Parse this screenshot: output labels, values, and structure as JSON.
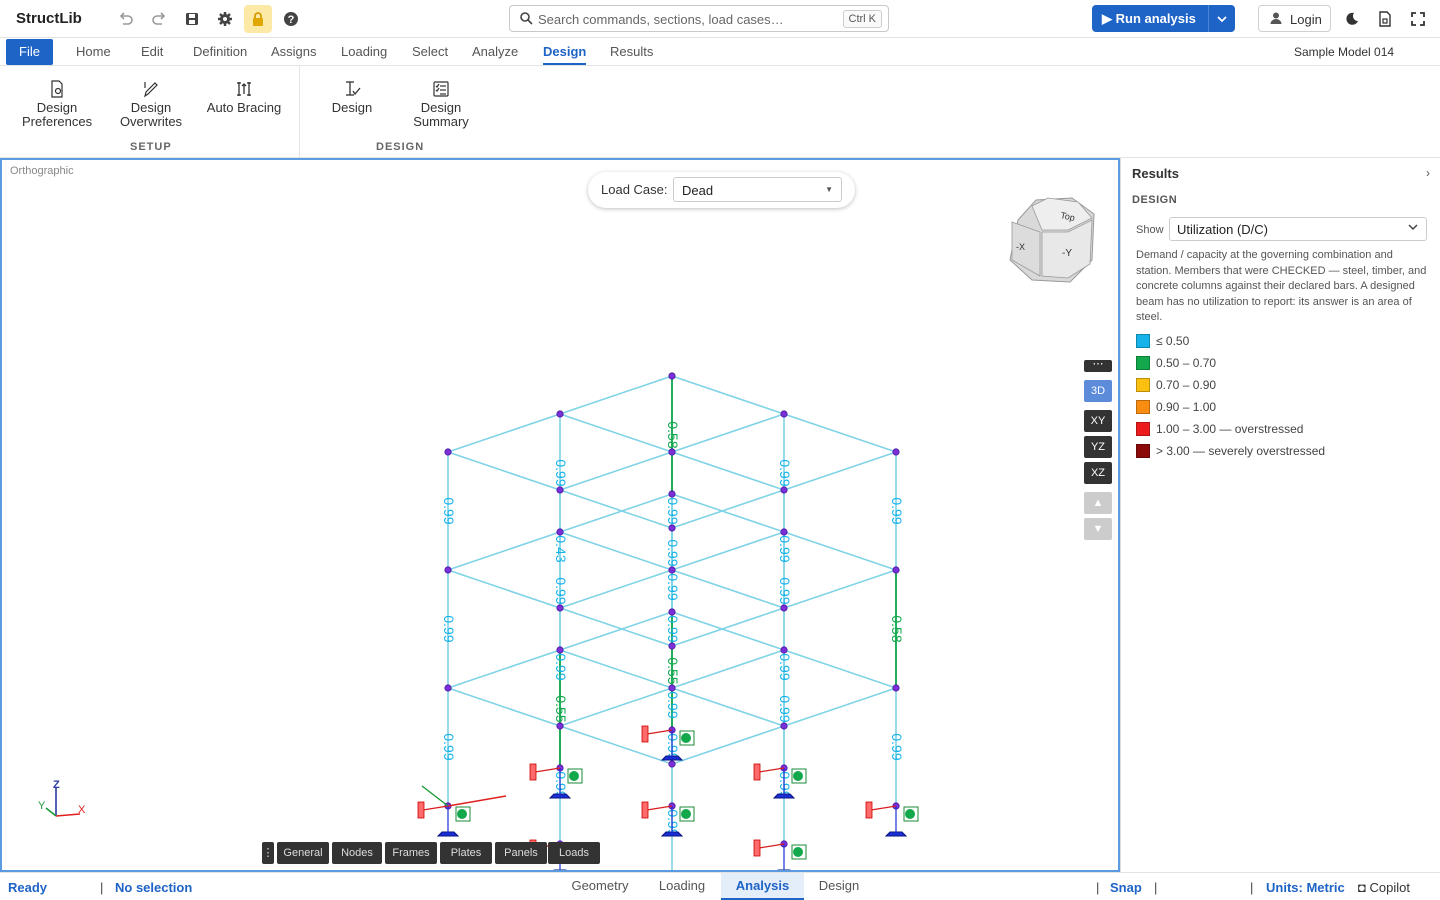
{
  "app": {
    "name": "StructLib",
    "model_name": "Sample Model 014"
  },
  "toolbar": {
    "icons": [
      "undo-icon",
      "redo-icon",
      "save-icon",
      "gear-icon",
      "lock-icon",
      "help-icon"
    ],
    "search_placeholder": "Search commands, sections, load cases…",
    "search_shortcut": "Ctrl K",
    "run_label": "Run analysis",
    "login_label": "Login"
  },
  "menu": {
    "file": "File",
    "items": [
      "Home",
      "Edit",
      "Definition",
      "Assigns",
      "Loading",
      "Select",
      "Analyze",
      "Design",
      "Results"
    ],
    "active": "Design"
  },
  "ribbon": {
    "setup_group": "SETUP",
    "design_group": "DESIGN",
    "design_preferences": [
      "Design",
      "Preferences"
    ],
    "design_overwrites": [
      "Design",
      "Overwrites"
    ],
    "auto_bracing": "Auto Bracing",
    "design": "Design",
    "design_summary": [
      "Design",
      "Summary"
    ]
  },
  "viewport": {
    "projection": "Orthographic",
    "load_case_label": "Load Case:",
    "load_case_value": "Dead",
    "view_buttons": [
      "3D",
      "XY",
      "YZ",
      "XZ"
    ],
    "active_view": "3D",
    "cube_faces": {
      "top": "Top",
      "front": "-Y",
      "left": "-X"
    },
    "axes": {
      "x": "X",
      "y": "Y",
      "z": "Z"
    },
    "bottom_tabs": [
      "General",
      "Nodes",
      "Frames",
      "Plates",
      "Panels",
      "Loads"
    ],
    "member_labels": [
      "0.58",
      "0.99",
      "0.55",
      "0.99",
      "0.99",
      "0.99",
      "0.99",
      "0.58",
      "0.99",
      "0.99",
      "0.99",
      "0.55",
      "0.99",
      "0.99",
      "0.99",
      "0.99",
      "0.99",
      "0.99",
      "0.99",
      "0.99",
      "0.99",
      "0.43",
      "0.99",
      "0.99",
      "0.99",
      "0.99",
      "0.99"
    ]
  },
  "results_panel": {
    "title": "Results",
    "section": "DESIGN",
    "show_label": "Show",
    "show_value": "Utilization (D/C)",
    "description": "Demand / capacity at the governing combination and station. Members that were CHECKED — steel, timber, and concrete columns against their declared bars. A designed beam has no utilization to report: its answer is an area of steel.",
    "legend": [
      {
        "label": "≤ 0.50",
        "color": "#16b3ea"
      },
      {
        "label": "0.50 – 0.70",
        "color": "#12a84b"
      },
      {
        "label": "0.70 – 0.90",
        "color": "#fbbf0f"
      },
      {
        "label": "0.90 – 1.00",
        "color": "#fb8c12"
      },
      {
        "label": "1.00 – 3.00 — overstressed",
        "color": "#ec1c1c"
      },
      {
        "label": "> 3.00 — severely overstressed",
        "color": "#8b0b0b"
      }
    ]
  },
  "statusbar": {
    "status": "Ready",
    "selection": "No selection",
    "tabs": [
      "Geometry",
      "Loading",
      "Analysis",
      "Design"
    ],
    "active_tab": "Analysis",
    "snap": "Snap",
    "units": "Units: Metric",
    "copilot": "Copilot"
  },
  "colors": {
    "accent": "#1e63c6",
    "frame": "#7fd3e6",
    "node": "#7b2fd6",
    "label_ok": "#16b3ea",
    "label_mid": "#12a84b"
  }
}
